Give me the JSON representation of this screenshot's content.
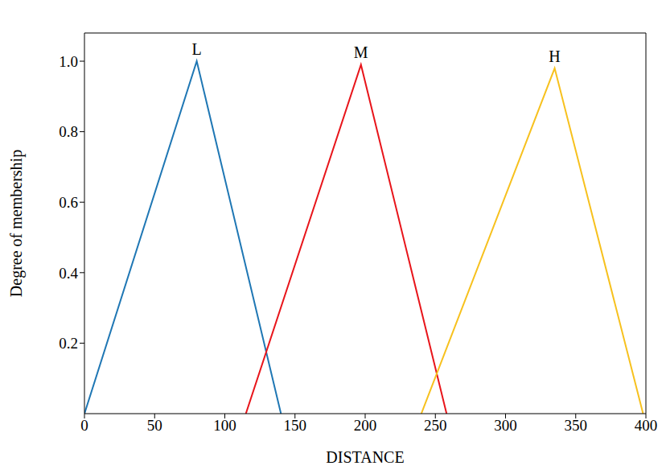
{
  "chart_data": {
    "type": "line",
    "x_label": "DISTANCE",
    "y_label": "Degree of membership",
    "xlim": [
      0,
      400
    ],
    "xticks": [
      0,
      50,
      100,
      150,
      200,
      250,
      300,
      350,
      400
    ],
    "ylim": [
      0,
      1.08
    ],
    "yticks": [
      0.2,
      0.4,
      0.6,
      0.8,
      {
        "value": 1,
        "label": "1.0"
      }
    ],
    "series": [
      {
        "name": "L",
        "color": "#1f77b4",
        "x": [
          0,
          80,
          140
        ],
        "values": [
          0,
          1,
          0
        ]
      },
      {
        "name": "M",
        "color": "#e8151b",
        "x": [
          115,
          197,
          258
        ],
        "values": [
          0,
          0.99,
          0
        ]
      },
      {
        "name": "H",
        "color": "#f7c11e",
        "x": [
          240,
          335,
          398
        ],
        "values": [
          0,
          0.98,
          0
        ]
      }
    ]
  }
}
